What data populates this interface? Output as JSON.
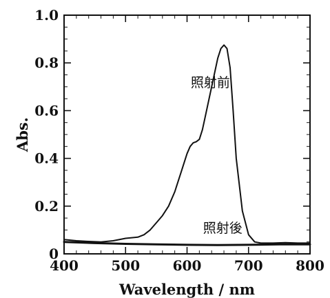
{
  "chart_data": {
    "type": "line",
    "xlabel": "Wavelength / nm",
    "ylabel": "Abs.",
    "xlim": [
      400,
      800
    ],
    "ylim": [
      0,
      1.0
    ],
    "x_ticks": [
      "400",
      "500",
      "600",
      "700",
      "800"
    ],
    "y_ticks": [
      "0",
      "0.2",
      "0.4",
      "0.6",
      "0.8",
      "1.0"
    ],
    "x_minor_step": 20,
    "y_minor_step": 0.05,
    "series": [
      {
        "name": "照射前",
        "x": [
          400,
          420,
          440,
          460,
          480,
          500,
          520,
          530,
          540,
          550,
          560,
          570,
          580,
          590,
          600,
          605,
          610,
          615,
          620,
          625,
          630,
          640,
          650,
          655,
          660,
          665,
          670,
          675,
          680,
          690,
          700,
          710,
          720,
          740,
          760,
          780,
          800
        ],
        "y": [
          0.06,
          0.055,
          0.052,
          0.05,
          0.055,
          0.065,
          0.07,
          0.08,
          0.1,
          0.13,
          0.16,
          0.2,
          0.26,
          0.34,
          0.42,
          0.45,
          0.465,
          0.47,
          0.48,
          0.52,
          0.58,
          0.7,
          0.82,
          0.86,
          0.875,
          0.86,
          0.78,
          0.6,
          0.4,
          0.18,
          0.08,
          0.05,
          0.045,
          0.045,
          0.047,
          0.045,
          0.045
        ],
        "color": "#111111"
      },
      {
        "name": "照射後",
        "x": [
          400,
          450,
          500,
          550,
          600,
          650,
          700,
          750,
          800
        ],
        "y": [
          0.05,
          0.045,
          0.042,
          0.04,
          0.038,
          0.037,
          0.038,
          0.04,
          0.04
        ],
        "color": "#111111"
      }
    ],
    "annotations": [
      {
        "text": "照射前",
        "x": 638,
        "y": 0.7
      },
      {
        "text": "照射後",
        "x": 658,
        "y": 0.09
      }
    ],
    "grid": false,
    "legend": "none"
  }
}
